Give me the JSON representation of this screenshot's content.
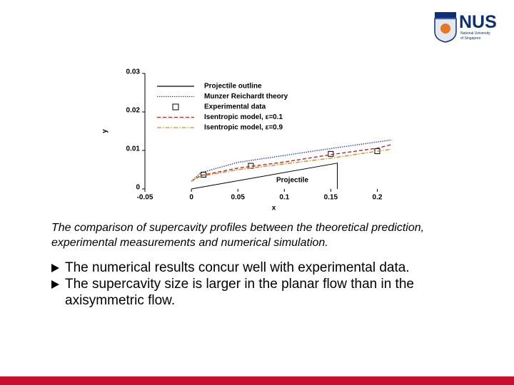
{
  "logo": {
    "name": "NUS",
    "subtitle": [
      "National University",
      "of Singapore"
    ]
  },
  "chart_data": {
    "type": "line",
    "x_label": "x",
    "y_label": "y",
    "xlim": [
      -0.05,
      0.215
    ],
    "ylim": [
      0,
      0.03
    ],
    "xticks": [
      {
        "value": -0.05,
        "label": "-0.05"
      },
      0,
      0.05,
      0.1,
      0.15,
      0.2
    ],
    "yticks": [
      0,
      0.01,
      0.02,
      0.03
    ],
    "legend": "upper left",
    "annotation": "Projectile",
    "series": [
      {
        "name": "Projectile outline",
        "color": "#000000",
        "style": "solid",
        "x": [
          0,
          0.157,
          0.157
        ],
        "values": [
          0,
          0.0067,
          0
        ]
      },
      {
        "name": "Munzer Reichardt theory",
        "color": "#2b3fd6",
        "style": "dotted",
        "x": [
          0,
          0.01,
          0.05,
          0.1,
          0.15,
          0.2,
          0.215
        ],
        "values": [
          0.002,
          0.0042,
          0.0069,
          0.0087,
          0.0105,
          0.0122,
          0.0127
        ]
      },
      {
        "name": "Experimental data",
        "color": "#000000",
        "style": "markers",
        "x": [
          0.013,
          0.064,
          0.15,
          0.2
        ],
        "values": [
          0.0037,
          0.006,
          0.0091,
          0.0098
        ]
      },
      {
        "name": "Isentropic model, ε=0.1",
        "color": "#cc2222",
        "style": "dashed",
        "x": [
          0,
          0.01,
          0.05,
          0.1,
          0.15,
          0.2,
          0.215
        ],
        "values": [
          0.002,
          0.0035,
          0.0054,
          0.007,
          0.0089,
          0.0106,
          0.0115
        ]
      },
      {
        "name": "Isentropic model, ε=0.9",
        "color": "#e08a20",
        "style": "dashdot",
        "x": [
          0,
          0.01,
          0.05,
          0.1,
          0.15,
          0.2,
          0.215
        ],
        "values": [
          0.002,
          0.0033,
          0.005,
          0.0065,
          0.008,
          0.0098,
          0.0103
        ]
      }
    ]
  },
  "caption": "The comparison of supercavity profiles between the theoretical prediction, experimental measurements and numerical simulation.",
  "bullets": [
    "The numerical results concur well with experimental data.",
    "The supercavity size is larger in the planar flow than in the axisymmetric flow."
  ]
}
